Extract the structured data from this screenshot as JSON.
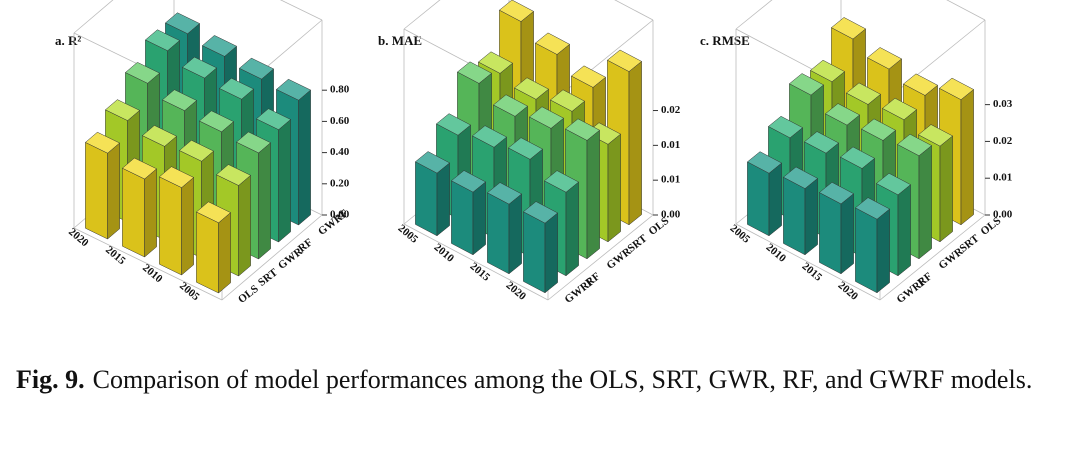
{
  "chart_data": [
    {
      "type": "bar3d",
      "title": "a. R²",
      "categories": [
        "2020",
        "2015",
        "2010",
        "2005"
      ],
      "series": [
        {
          "name": "GWRF",
          "color": "#1f9a8a",
          "values": [
            0.88,
            0.85,
            0.82,
            0.8
          ]
        },
        {
          "name": "RF",
          "color": "#2fb47c",
          "values": [
            0.88,
            0.82,
            0.8,
            0.72
          ]
        },
        {
          "name": "GWR",
          "color": "#5ec962",
          "values": [
            0.78,
            0.72,
            0.7,
            0.68
          ]
        },
        {
          "name": "SRT",
          "color": "#b5de2b",
          "values": [
            0.65,
            0.6,
            0.62,
            0.58
          ]
        },
        {
          "name": "OLS",
          "color": "#f2d81e",
          "values": [
            0.55,
            0.5,
            0.56,
            0.45
          ]
        }
      ],
      "zlim": [
        0,
        1.25
      ],
      "zticks": [
        {
          "value": 0,
          "label": "0.00"
        },
        {
          "value": 0.2,
          "label": "0.20"
        },
        {
          "value": 0.4,
          "label": "0.40"
        },
        {
          "value": 0.6,
          "label": "0.60"
        },
        {
          "value": 0.8,
          "label": "0.80"
        }
      ],
      "grid": false
    },
    {
      "type": "bar3d",
      "title": "b. MAE",
      "categories": [
        "2005",
        "2010",
        "2015",
        "2020"
      ],
      "series": [
        {
          "name": "OLS",
          "color": "#f2d81e",
          "values": [
            0.021,
            0.019,
            0.017,
            0.022
          ]
        },
        {
          "name": "SRT",
          "color": "#b5de2b",
          "values": [
            0.016,
            0.015,
            0.016,
            0.014
          ]
        },
        {
          "name": "GWR",
          "color": "#5ec962",
          "values": [
            0.017,
            0.015,
            0.016,
            0.017
          ]
        },
        {
          "name": "RF",
          "color": "#2fb47c",
          "values": [
            0.012,
            0.013,
            0.014,
            0.012
          ]
        },
        {
          "name": "GWRF",
          "color": "#1f9a8a",
          "values": [
            0.009,
            0.009,
            0.01,
            0.01
          ]
        }
      ],
      "zlim": [
        0,
        0.028
      ],
      "zticks": [
        {
          "value": 0,
          "label": "0.00"
        },
        {
          "value": 0.005,
          "label": "0.01"
        },
        {
          "value": 0.01,
          "label": "0.01"
        },
        {
          "value": 0.015,
          "label": "0.02"
        }
      ],
      "grid": false
    },
    {
      "type": "bar3d",
      "title": "c. RMSE",
      "categories": [
        "2005",
        "2010",
        "2015",
        "2020"
      ],
      "series": [
        {
          "name": "OLS",
          "color": "#f2d81e",
          "values": [
            0.035,
            0.032,
            0.03,
            0.034
          ]
        },
        {
          "name": "SRT",
          "color": "#b5de2b",
          "values": [
            0.028,
            0.027,
            0.028,
            0.026
          ]
        },
        {
          "name": "GWR",
          "color": "#5ec962",
          "values": [
            0.029,
            0.026,
            0.027,
            0.028
          ]
        },
        {
          "name": "RF",
          "color": "#2fb47c",
          "values": [
            0.022,
            0.023,
            0.024,
            0.022
          ]
        },
        {
          "name": "GWRF",
          "color": "#1f9a8a",
          "values": [
            0.017,
            0.018,
            0.019,
            0.02
          ]
        }
      ],
      "zlim": [
        0,
        0.053
      ],
      "zticks": [
        {
          "value": 0,
          "label": "0.00"
        },
        {
          "value": 0.01,
          "label": "0.01"
        },
        {
          "value": 0.02,
          "label": "0.02"
        },
        {
          "value": 0.03,
          "label": "0.03"
        }
      ],
      "grid": false
    }
  ],
  "caption": {
    "label": "Fig. 9.",
    "text": "Comparison of model performances among the OLS, SRT, GWR, RF, and GWRF models."
  }
}
